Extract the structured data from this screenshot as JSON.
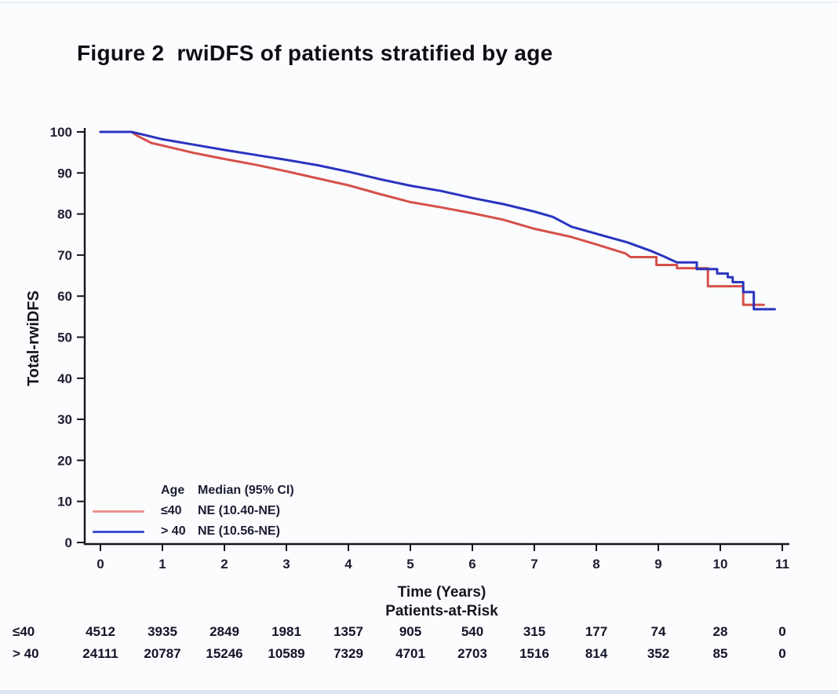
{
  "chart_data": {
    "type": "line",
    "subtype": "kaplan-meier-step",
    "title": "Figure 2  rwiDFS of patients stratified by age",
    "xlabel": "Time (Years)",
    "ylabel": "Total-rwiDFS",
    "xlim": [
      0,
      11
    ],
    "ylim": [
      0,
      100
    ],
    "xticks": [
      0,
      1,
      2,
      3,
      4,
      5,
      6,
      7,
      8,
      9,
      10,
      11
    ],
    "yticks": [
      0,
      10,
      20,
      30,
      40,
      50,
      60,
      70,
      80,
      90,
      100
    ],
    "grid": false,
    "legend_position": "inside-bottom-left",
    "legend_header": {
      "age": "Age",
      "median": "Median (95% CI)"
    },
    "series": [
      {
        "name": "≤40",
        "median": "NE (10.40-NE)",
        "color": "#d6504a",
        "swatch_color": "#f0928c",
        "points": [
          [
            0,
            100
          ],
          [
            0.5,
            100
          ],
          [
            0.6,
            99.0
          ],
          [
            0.82,
            97.3
          ],
          [
            1,
            96.7
          ],
          [
            1.5,
            94.9
          ],
          [
            2,
            93.4
          ],
          [
            2.5,
            92.0
          ],
          [
            3,
            90.4
          ],
          [
            3.5,
            88.7
          ],
          [
            4,
            87.0
          ],
          [
            4.5,
            84.9
          ],
          [
            5,
            82.9
          ],
          [
            5.5,
            81.6
          ],
          [
            6,
            80.2
          ],
          [
            6.5,
            78.6
          ],
          [
            7,
            76.4
          ],
          [
            7.6,
            74.4
          ],
          [
            8,
            72.6
          ],
          [
            8.47,
            70.4
          ],
          [
            8.55,
            69.5
          ],
          [
            8.97,
            69.5
          ],
          [
            8.97,
            67.6
          ],
          [
            9.3,
            67.6
          ],
          [
            9.3,
            66.8
          ],
          [
            9.8,
            66.8
          ],
          [
            9.8,
            62.4
          ],
          [
            10.37,
            62.4
          ],
          [
            10.37,
            57.9
          ],
          [
            10.7,
            57.9
          ]
        ]
      },
      {
        "name": "> 40",
        "median": "NE (10.56-NE)",
        "color": "#2a34bf",
        "swatch_color": "#3d4fd4",
        "points": [
          [
            0,
            100
          ],
          [
            0.5,
            100
          ],
          [
            0.7,
            99.3
          ],
          [
            1,
            98.2
          ],
          [
            1.5,
            96.9
          ],
          [
            2,
            95.6
          ],
          [
            2.5,
            94.4
          ],
          [
            3,
            93.2
          ],
          [
            3.5,
            91.9
          ],
          [
            4,
            90.3
          ],
          [
            4.5,
            88.5
          ],
          [
            5,
            86.9
          ],
          [
            5.5,
            85.6
          ],
          [
            6,
            83.9
          ],
          [
            6.5,
            82.4
          ],
          [
            7,
            80.6
          ],
          [
            7.3,
            79.3
          ],
          [
            7.6,
            76.9
          ],
          [
            8,
            75.2
          ],
          [
            8.5,
            73.1
          ],
          [
            8.9,
            70.9
          ],
          [
            9.1,
            69.6
          ],
          [
            9.3,
            68.2
          ],
          [
            9.62,
            68.2
          ],
          [
            9.62,
            66.6
          ],
          [
            9.95,
            66.6
          ],
          [
            9.95,
            65.5
          ],
          [
            10.12,
            65.5
          ],
          [
            10.12,
            64.6
          ],
          [
            10.2,
            64.6
          ],
          [
            10.2,
            63.4
          ],
          [
            10.37,
            63.4
          ],
          [
            10.37,
            61.0
          ],
          [
            10.54,
            61.0
          ],
          [
            10.54,
            56.8
          ],
          [
            10.88,
            56.8
          ]
        ]
      }
    ],
    "at_risk": {
      "heading": "Patients-at-Risk",
      "time_points": [
        0,
        1,
        2,
        3,
        4,
        5,
        6,
        7,
        8,
        9,
        10,
        11
      ],
      "rows": [
        {
          "label": "≤40",
          "values": [
            "4512",
            "3935",
            "2849",
            "1981",
            "1357",
            "905",
            "540",
            "315",
            "177",
            "74",
            "28",
            "0"
          ]
        },
        {
          "label": "> 40",
          "values": [
            "24111",
            "20787",
            "15246",
            "10589",
            "7329",
            "4701",
            "2703",
            "1516",
            "814",
            "352",
            "85",
            "0"
          ]
        }
      ]
    }
  }
}
